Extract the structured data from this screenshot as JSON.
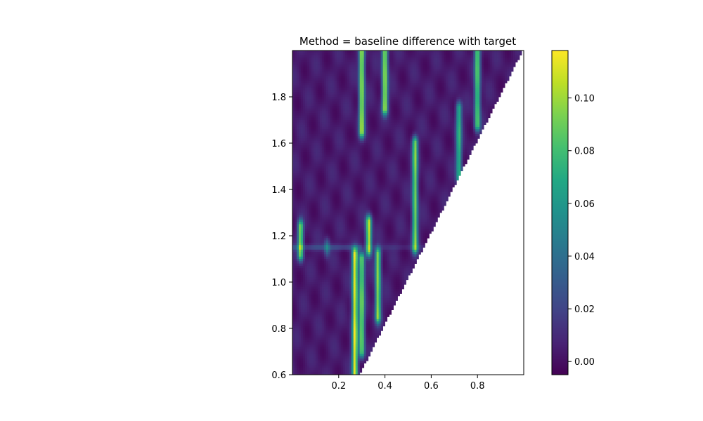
{
  "chart_data": {
    "type": "heatmap",
    "title": "Method = baseline difference with target",
    "xlabel": "",
    "ylabel": "",
    "xlim": [
      0.0,
      1.0
    ],
    "ylim": [
      0.6,
      2.0
    ],
    "x_ticks": [
      "0.2",
      "0.4",
      "0.6",
      "0.8"
    ],
    "y_ticks": [
      "0.6",
      "0.8",
      "1.0",
      "1.2",
      "1.4",
      "1.6",
      "1.8"
    ],
    "colormap": "viridis",
    "colorbar": {
      "min": -0.005,
      "max": 0.118,
      "ticks": [
        "0.00",
        "0.02",
        "0.04",
        "0.06",
        "0.08",
        "0.10"
      ]
    },
    "masked_region": "lower-right triangle (white), boundary from (0.29, 0.6) to (0.985, 1.98)",
    "background_value": 0.004,
    "hotspots": [
      {
        "x": 0.27,
        "y_range": [
          0.6,
          1.12
        ],
        "value": 0.11
      },
      {
        "x": 0.3,
        "y_range": [
          0.7,
          1.1
        ],
        "value": 0.09
      },
      {
        "x": 0.37,
        "y_range": [
          0.85,
          1.12
        ],
        "value": 0.095
      },
      {
        "x": 0.33,
        "y_range": [
          1.14,
          1.26
        ],
        "value": 0.105
      },
      {
        "x": 0.035,
        "y_range": [
          1.12,
          1.24
        ],
        "value": 0.09
      },
      {
        "x": 0.15,
        "y_range": [
          1.14,
          1.16
        ],
        "value": 0.035
      },
      {
        "x": 0.3,
        "y_range": [
          1.65,
          2.0
        ],
        "value": 0.1
      },
      {
        "x": 0.4,
        "y_range": [
          1.75,
          2.0
        ],
        "value": 0.1
      },
      {
        "x": 0.53,
        "y_range": [
          1.15,
          1.6
        ],
        "value": 0.09
      },
      {
        "x": 0.72,
        "y_range": [
          1.45,
          1.75
        ],
        "value": 0.07
      },
      {
        "x": 0.8,
        "y_range": [
          1.68,
          2.0
        ],
        "value": 0.085
      }
    ]
  }
}
